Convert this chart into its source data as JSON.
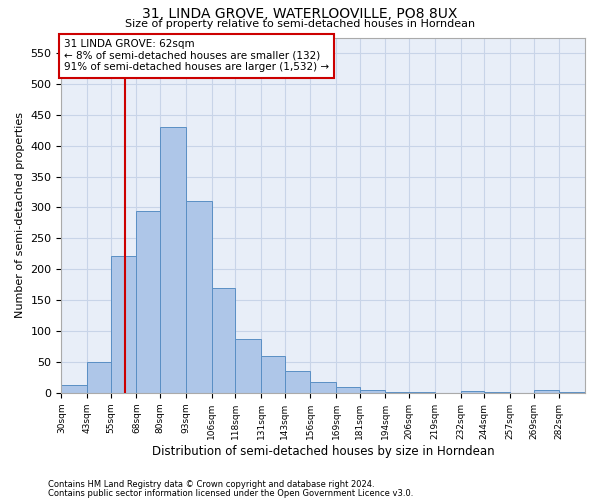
{
  "title_line1": "31, LINDA GROVE, WATERLOOVILLE, PO8 8UX",
  "title_line2": "Size of property relative to semi-detached houses in Horndean",
  "xlabel": "Distribution of semi-detached houses by size in Horndean",
  "ylabel": "Number of semi-detached properties",
  "footer_line1": "Contains HM Land Registry data © Crown copyright and database right 2024.",
  "footer_line2": "Contains public sector information licensed under the Open Government Licence v3.0.",
  "annotation_line1": "31 LINDA GROVE: 62sqm",
  "annotation_line2": "← 8% of semi-detached houses are smaller (132)",
  "annotation_line3": "91% of semi-detached houses are larger (1,532) →",
  "bin_edges": [
    30,
    43,
    55,
    68,
    80,
    93,
    106,
    118,
    131,
    143,
    156,
    169,
    181,
    194,
    206,
    219,
    232,
    244,
    257,
    269,
    282,
    295
  ],
  "bin_labels": [
    "30sqm",
    "43sqm",
    "55sqm",
    "68sqm",
    "80sqm",
    "93sqm",
    "106sqm",
    "118sqm",
    "131sqm",
    "143sqm",
    "156sqm",
    "169sqm",
    "181sqm",
    "194sqm",
    "206sqm",
    "219sqm",
    "232sqm",
    "244sqm",
    "257sqm",
    "269sqm",
    "282sqm"
  ],
  "counts": [
    13,
    50,
    222,
    295,
    430,
    310,
    170,
    87,
    60,
    35,
    17,
    9,
    5,
    2,
    1,
    0,
    3,
    1,
    0,
    4,
    2
  ],
  "bar_color": "#aec6e8",
  "bar_edge_color": "#5a8fc4",
  "vline_x": 62,
  "vline_color": "#cc0000",
  "ylim": [
    0,
    575
  ],
  "yticks": [
    0,
    50,
    100,
    150,
    200,
    250,
    300,
    350,
    400,
    450,
    500,
    550
  ],
  "grid_color": "#c8d4e8",
  "background_color": "#e8eef8",
  "annotation_box_color": "#cc0000"
}
